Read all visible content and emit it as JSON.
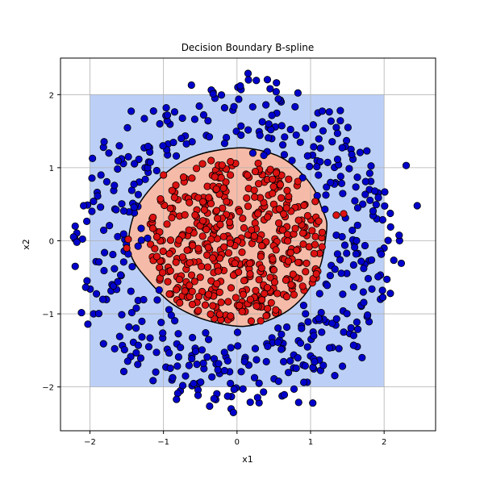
{
  "chart_data": {
    "type": "scatter",
    "title": "Decision Boundary B-spline",
    "xlabel": "x1",
    "ylabel": "x2",
    "xlim": [
      -2.4,
      2.7
    ],
    "ylim": [
      -2.6,
      2.5
    ],
    "xticks": [
      -2,
      -1,
      0,
      1,
      2
    ],
    "yticks": [
      -2,
      -1,
      0,
      1,
      2
    ],
    "xtick_labels": [
      "−2",
      "−1",
      "0",
      "1",
      "2"
    ],
    "ytick_labels": [
      "−2",
      "−1",
      "0",
      "1",
      "2"
    ],
    "grid": true,
    "decision_region": {
      "domain": {
        "x": [
          -2,
          2
        ],
        "y": [
          -2,
          2
        ]
      },
      "outer_class_color": "#bcd0f7",
      "inner_class_color": "#f6bba8",
      "boundary_color": "#000000",
      "boundary": [
        [
          0.0,
          1.27
        ],
        [
          0.3,
          1.24
        ],
        [
          0.6,
          1.14
        ],
        [
          0.85,
          0.95
        ],
        [
          1.05,
          0.7
        ],
        [
          1.15,
          0.45
        ],
        [
          1.22,
          0.25
        ],
        [
          1.2,
          0.0
        ],
        [
          1.13,
          -0.35
        ],
        [
          0.95,
          -0.7
        ],
        [
          0.7,
          -0.95
        ],
        [
          0.4,
          -1.1
        ],
        [
          0.1,
          -1.17
        ],
        [
          -0.2,
          -1.14
        ],
        [
          -0.55,
          -1.04
        ],
        [
          -0.9,
          -0.85
        ],
        [
          -1.2,
          -0.55
        ],
        [
          -1.42,
          -0.25
        ],
        [
          -1.47,
          0.05
        ],
        [
          -1.36,
          0.45
        ],
        [
          -1.1,
          0.8
        ],
        [
          -0.8,
          1.05
        ],
        [
          -0.45,
          1.2
        ]
      ]
    },
    "series": [
      {
        "class": 1,
        "color": "#0000cc",
        "distribution": "ring",
        "radius_range": [
          1.35,
          2.25
        ],
        "points": [
          [
            0.15,
            2.29
          ],
          [
            -0.62,
            2.13
          ],
          [
            0.45,
            2.08
          ],
          [
            2.3,
            1.03
          ],
          [
            2.45,
            0.48
          ],
          [
            -2.2,
            0.2
          ],
          [
            -2.2,
            0.02
          ],
          [
            2.0,
            -0.1
          ],
          [
            -2.2,
            -0.35
          ],
          [
            1.7,
            -1.6
          ],
          [
            1.03,
            -2.22
          ],
          [
            0.18,
            -2.21
          ],
          [
            -0.08,
            -2.3
          ],
          [
            -0.05,
            -2.35
          ],
          [
            -1.25,
            1.0
          ],
          [
            1.55,
            1.25
          ],
          [
            1.8,
            0.7
          ],
          [
            -1.7,
            -0.6
          ],
          [
            -1.2,
            -1.45
          ],
          [
            0.9,
            -1.7
          ],
          [
            1.35,
            1.55
          ],
          [
            -1.05,
            1.6
          ],
          [
            0.6,
            1.9
          ],
          [
            -0.3,
            1.95
          ],
          [
            -1.85,
            0.9
          ],
          [
            -1.95,
            -1.0
          ],
          [
            1.95,
            -0.8
          ],
          [
            1.45,
            -1.25
          ],
          [
            -0.7,
            -1.85
          ],
          [
            0.3,
            -1.95
          ],
          [
            1.9,
            0.3
          ],
          [
            -1.6,
            1.3
          ],
          [
            1.1,
            1.75
          ],
          [
            -0.45,
            -1.75
          ]
        ]
      },
      {
        "class": 0,
        "color": "#dd1111",
        "distribution": "disk",
        "radius_max": 1.15,
        "points": [
          [
            -1.48,
            0.02
          ],
          [
            1.45,
            0.37
          ],
          [
            -1.0,
            0.9
          ],
          [
            -1.5,
            -0.1
          ],
          [
            1.35,
            0.35
          ],
          [
            0.0,
            0.0
          ],
          [
            0.5,
            0.5
          ],
          [
            -0.5,
            -0.5
          ],
          [
            0.3,
            -0.8
          ],
          [
            -0.7,
            0.6
          ],
          [
            0.85,
            -0.3
          ],
          [
            -0.2,
            1.0
          ]
        ]
      }
    ]
  }
}
